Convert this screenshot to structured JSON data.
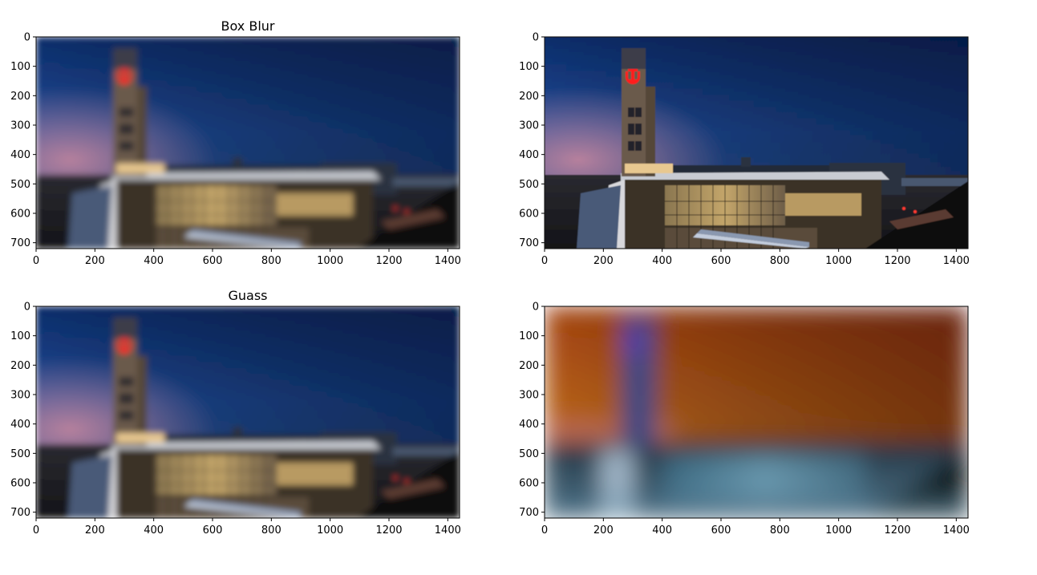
{
  "chart_data": [
    {
      "type": "image",
      "title": "Box Blur",
      "content": "box-blurred-photo",
      "xlim": [
        0,
        1440
      ],
      "ylim": [
        720,
        0
      ],
      "xticks": [
        0,
        200,
        400,
        600,
        800,
        1000,
        1200,
        1400
      ],
      "yticks": [
        0,
        100,
        200,
        300,
        400,
        500,
        600,
        700
      ]
    },
    {
      "type": "image",
      "title": "",
      "content": "original-photo",
      "xlim": [
        0,
        1440
      ],
      "ylim": [
        720,
        0
      ],
      "xticks": [
        0,
        200,
        400,
        600,
        800,
        1000,
        1200,
        1400
      ],
      "yticks": [
        0,
        100,
        200,
        300,
        400,
        500,
        600,
        700
      ]
    },
    {
      "type": "image",
      "title": "Guass",
      "content": "gaussian-blurred-photo",
      "xlim": [
        0,
        1440
      ],
      "ylim": [
        720,
        0
      ],
      "xticks": [
        0,
        200,
        400,
        600,
        800,
        1000,
        1200,
        1400
      ],
      "yticks": [
        0,
        100,
        200,
        300,
        400,
        500,
        600,
        700
      ]
    },
    {
      "type": "image",
      "title": "",
      "content": "heavily-blurred-color-swapped-photo",
      "xlim": [
        0,
        1440
      ],
      "ylim": [
        720,
        0
      ],
      "xticks": [
        0,
        200,
        400,
        600,
        800,
        1000,
        1200,
        1400
      ],
      "yticks": [
        0,
        100,
        200,
        300,
        400,
        500,
        600,
        700
      ]
    }
  ]
}
